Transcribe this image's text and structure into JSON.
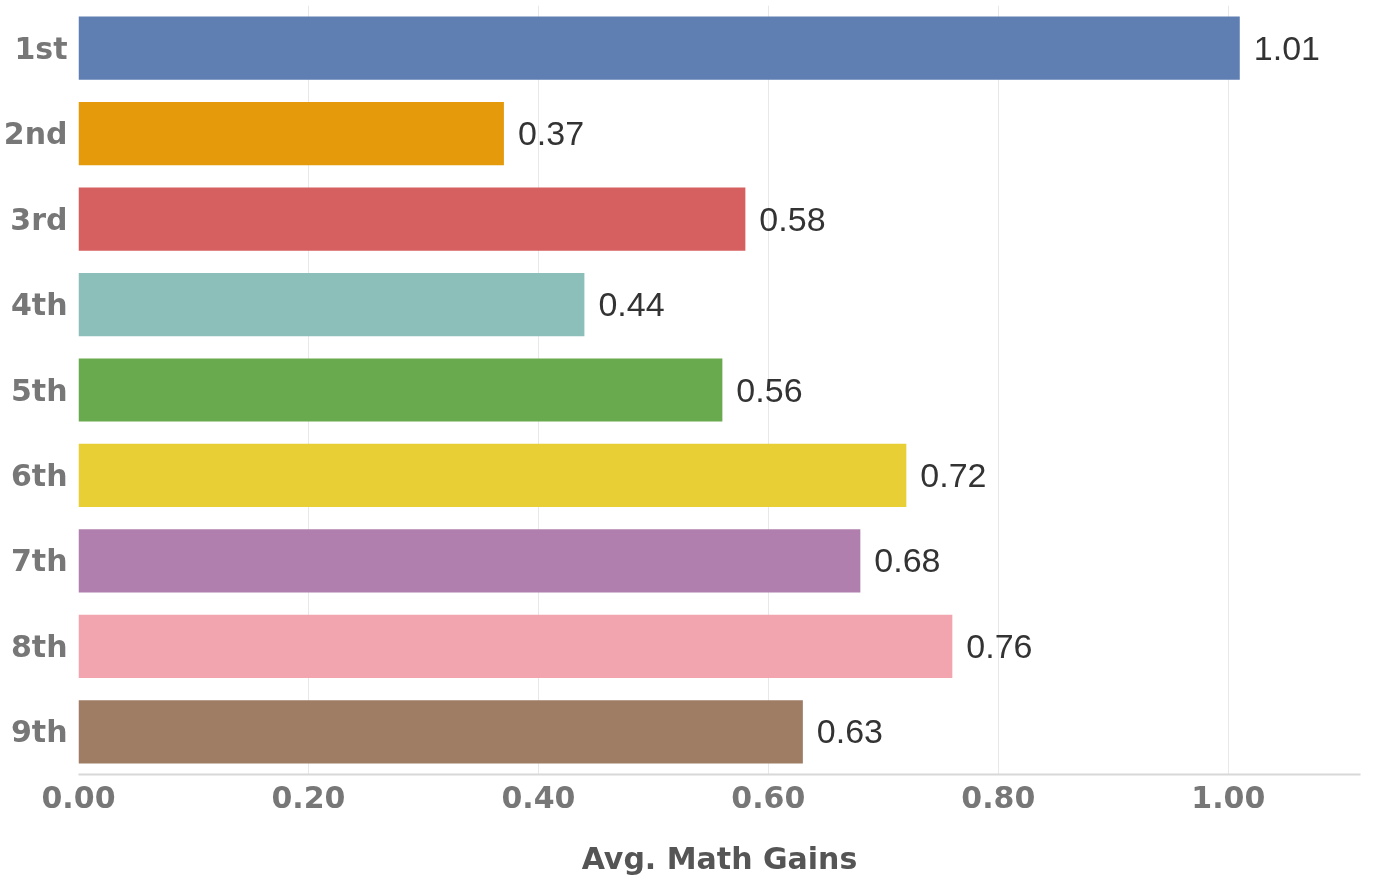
{
  "chart_data": {
    "type": "bar",
    "orientation": "horizontal",
    "xlabel": "Avg. Math Gains",
    "categories": [
      "1st",
      "2nd",
      "3rd",
      "4th",
      "5th",
      "6th",
      "7th",
      "8th",
      "9th"
    ],
    "values": [
      1.01,
      0.37,
      0.58,
      0.44,
      0.56,
      0.72,
      0.68,
      0.76,
      0.63
    ],
    "colors": [
      "#5f7fb3",
      "#e49a0b",
      "#d65f5f",
      "#8cbfba",
      "#6aaa4f",
      "#e8cf36",
      "#b07fae",
      "#f2a5ae",
      "#9e7d64"
    ],
    "xlim": [
      0,
      1.115
    ],
    "xticks": [
      {
        "value": 0,
        "label": "0.00"
      },
      {
        "value": 0.2,
        "label": "0.20"
      },
      {
        "value": 0.4,
        "label": "0.40"
      },
      {
        "value": 0.6,
        "label": "0.60"
      },
      {
        "value": 0.8,
        "label": "0.80"
      },
      {
        "value": 1.0,
        "label": "1.00"
      }
    ],
    "grid": "x",
    "data_labels": true
  }
}
